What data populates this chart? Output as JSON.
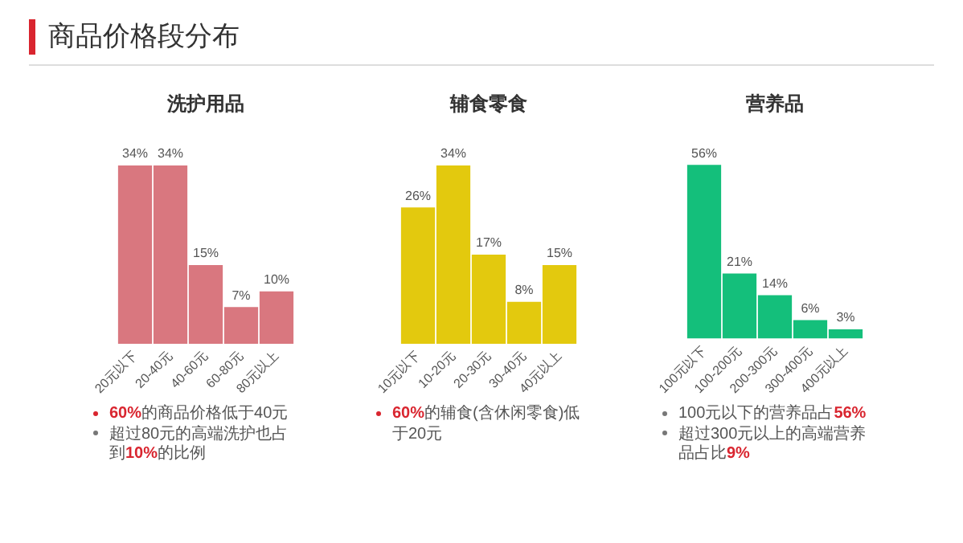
{
  "chart_data": [
    {
      "type": "bar",
      "title": "洗护用品",
      "categories": [
        "20元以下",
        "20-40元",
        "40-60元",
        "60-80元",
        "80元以上"
      ],
      "values": [
        34,
        34,
        15,
        7,
        10
      ],
      "value_labels": [
        "34%",
        "34%",
        "15%",
        "7%",
        "10%"
      ],
      "color": "#d9777f",
      "grid": false,
      "legend": false,
      "annotations": [
        "商品价格段分布",
        "60%的商品价格低于40元",
        "超过80元的高端洗护也占到10%的比例"
      ]
    },
    {
      "type": "bar",
      "title": "辅食零食",
      "categories": [
        "10元以下",
        "10-20元",
        "20-30元",
        "30-40元",
        "40元以上"
      ],
      "values": [
        26,
        34,
        17,
        8,
        15
      ],
      "value_labels": [
        "26%",
        "34%",
        "17%",
        "8%",
        "15%"
      ],
      "color": "#e3c90e",
      "grid": false,
      "legend": false,
      "annotations": [
        "60%的辅食(含休闲零食)低于20元"
      ]
    },
    {
      "type": "bar",
      "title": "营养品",
      "categories": [
        "100元以下",
        "100-200元",
        "200-300元",
        "300-400元",
        "400元以上"
      ],
      "values": [
        56,
        21,
        14,
        6,
        3
      ],
      "value_labels": [
        "56%",
        "21%",
        "14%",
        "6%",
        "3%"
      ],
      "color": "#14bf7b",
      "grid": false,
      "legend": false,
      "annotations": [
        "100元以下的营养品占56%",
        "超过300元以上的高端营养品占比9%"
      ]
    }
  ]
}
